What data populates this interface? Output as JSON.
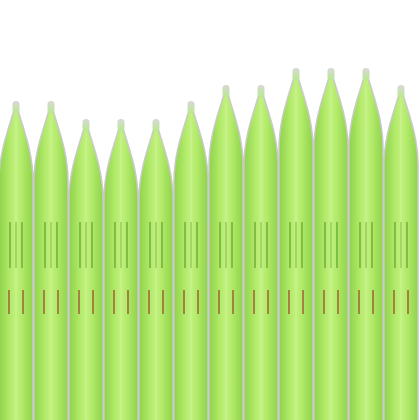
{
  "colors": {
    "background": "#ffffff",
    "body": "#a6e65a",
    "body_light": "#c8f28a",
    "body_dark": "#7fc23a",
    "outline": "#c9c9c9",
    "tip": "#e6e6e6",
    "stripe": "#4f8f1e",
    "mark": "#a0522d"
  },
  "shapes": [
    {
      "id": "stalk-1"
    },
    {
      "id": "stalk-2"
    },
    {
      "id": "stalk-3"
    },
    {
      "id": "stalk-4"
    },
    {
      "id": "stalk-5"
    },
    {
      "id": "stalk-6"
    },
    {
      "id": "stalk-7"
    },
    {
      "id": "stalk-8"
    },
    {
      "id": "stalk-9"
    },
    {
      "id": "stalk-10"
    },
    {
      "id": "stalk-11"
    },
    {
      "id": "stalk-12"
    }
  ]
}
